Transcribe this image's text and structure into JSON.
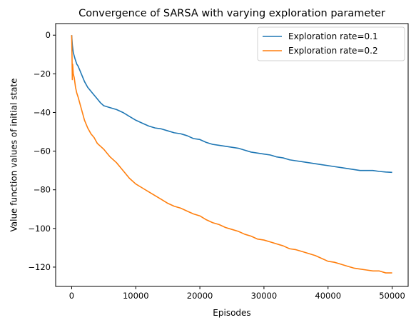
{
  "chart_data": {
    "type": "line",
    "title": "Convergence of SARSA with varying exploration parameter",
    "xlabel": "Episodes",
    "ylabel": "Value function values of initial state",
    "xlim": [
      -2500,
      52500
    ],
    "ylim": [
      -130,
      6
    ],
    "xticks": [
      0,
      10000,
      20000,
      30000,
      40000,
      50000
    ],
    "yticks": [
      0,
      -20,
      -40,
      -60,
      -80,
      -100,
      -120
    ],
    "grid": false,
    "legend_position": "top-right",
    "series": [
      {
        "name": "Exploration rate=0.1",
        "color": "#1f77b4",
        "points": [
          [
            0,
            0
          ],
          [
            100,
            -5
          ],
          [
            250,
            -9
          ],
          [
            500,
            -12
          ],
          [
            800,
            -15
          ],
          [
            1000,
            -16
          ],
          [
            1500,
            -20
          ],
          [
            2000,
            -24
          ],
          [
            2500,
            -27
          ],
          [
            3000,
            -29
          ],
          [
            3500,
            -31
          ],
          [
            4000,
            -33
          ],
          [
            4500,
            -35
          ],
          [
            5000,
            -36.5
          ],
          [
            6000,
            -37.5
          ],
          [
            7000,
            -38.5
          ],
          [
            8000,
            -40
          ],
          [
            9000,
            -42
          ],
          [
            10000,
            -44
          ],
          [
            11000,
            -45.5
          ],
          [
            12000,
            -47
          ],
          [
            13000,
            -48
          ],
          [
            14000,
            -48.5
          ],
          [
            15000,
            -49.5
          ],
          [
            16000,
            -50.5
          ],
          [
            17000,
            -51
          ],
          [
            18000,
            -52
          ],
          [
            19000,
            -53.5
          ],
          [
            20000,
            -54
          ],
          [
            21000,
            -55.5
          ],
          [
            22000,
            -56.5
          ],
          [
            23000,
            -57
          ],
          [
            24000,
            -57.5
          ],
          [
            25000,
            -58
          ],
          [
            26000,
            -58.5
          ],
          [
            27000,
            -59.5
          ],
          [
            28000,
            -60.5
          ],
          [
            29000,
            -61
          ],
          [
            30000,
            -61.5
          ],
          [
            31000,
            -62
          ],
          [
            32000,
            -63
          ],
          [
            33000,
            -63.5
          ],
          [
            34000,
            -64.5
          ],
          [
            35000,
            -65
          ],
          [
            36000,
            -65.5
          ],
          [
            37000,
            -66
          ],
          [
            38000,
            -66.5
          ],
          [
            39000,
            -67
          ],
          [
            40000,
            -67.5
          ],
          [
            41000,
            -68
          ],
          [
            42000,
            -68.5
          ],
          [
            43000,
            -69
          ],
          [
            44000,
            -69.5
          ],
          [
            45000,
            -70
          ],
          [
            46000,
            -70
          ],
          [
            47000,
            -70
          ],
          [
            48000,
            -70.5
          ],
          [
            49000,
            -70.8
          ],
          [
            50000,
            -71
          ]
        ]
      },
      {
        "name": "Exploration rate=0.2",
        "color": "#ff7f0e",
        "points": [
          [
            0,
            0
          ],
          [
            50,
            -10
          ],
          [
            100,
            -23
          ],
          [
            150,
            -15
          ],
          [
            250,
            -20
          ],
          [
            400,
            -22
          ],
          [
            600,
            -27
          ],
          [
            800,
            -30
          ],
          [
            1000,
            -32
          ],
          [
            1500,
            -38
          ],
          [
            2000,
            -44
          ],
          [
            2500,
            -48
          ],
          [
            3000,
            -51
          ],
          [
            3500,
            -53
          ],
          [
            4000,
            -56
          ],
          [
            4500,
            -57.5
          ],
          [
            5000,
            -59
          ],
          [
            6000,
            -63
          ],
          [
            7000,
            -66
          ],
          [
            8000,
            -70
          ],
          [
            9000,
            -74
          ],
          [
            10000,
            -77
          ],
          [
            11000,
            -79
          ],
          [
            12000,
            -81
          ],
          [
            13000,
            -83
          ],
          [
            14000,
            -85
          ],
          [
            15000,
            -87
          ],
          [
            16000,
            -88.5
          ],
          [
            17000,
            -89.5
          ],
          [
            18000,
            -91
          ],
          [
            19000,
            -92.5
          ],
          [
            20000,
            -93.5
          ],
          [
            21000,
            -95.5
          ],
          [
            22000,
            -97
          ],
          [
            23000,
            -98
          ],
          [
            24000,
            -99.5
          ],
          [
            25000,
            -100.5
          ],
          [
            26000,
            -101.5
          ],
          [
            27000,
            -103
          ],
          [
            28000,
            -104
          ],
          [
            29000,
            -105.5
          ],
          [
            30000,
            -106
          ],
          [
            31000,
            -107
          ],
          [
            32000,
            -108
          ],
          [
            33000,
            -109
          ],
          [
            34000,
            -110.5
          ],
          [
            35000,
            -111
          ],
          [
            36000,
            -112
          ],
          [
            37000,
            -113
          ],
          [
            38000,
            -114
          ],
          [
            39000,
            -115.5
          ],
          [
            40000,
            -117
          ],
          [
            41000,
            -117.5
          ],
          [
            42000,
            -118.5
          ],
          [
            43000,
            -119.5
          ],
          [
            44000,
            -120.5
          ],
          [
            45000,
            -121
          ],
          [
            46000,
            -121.5
          ],
          [
            47000,
            -122
          ],
          [
            48000,
            -122
          ],
          [
            49000,
            -123
          ],
          [
            50000,
            -123
          ]
        ]
      }
    ]
  }
}
